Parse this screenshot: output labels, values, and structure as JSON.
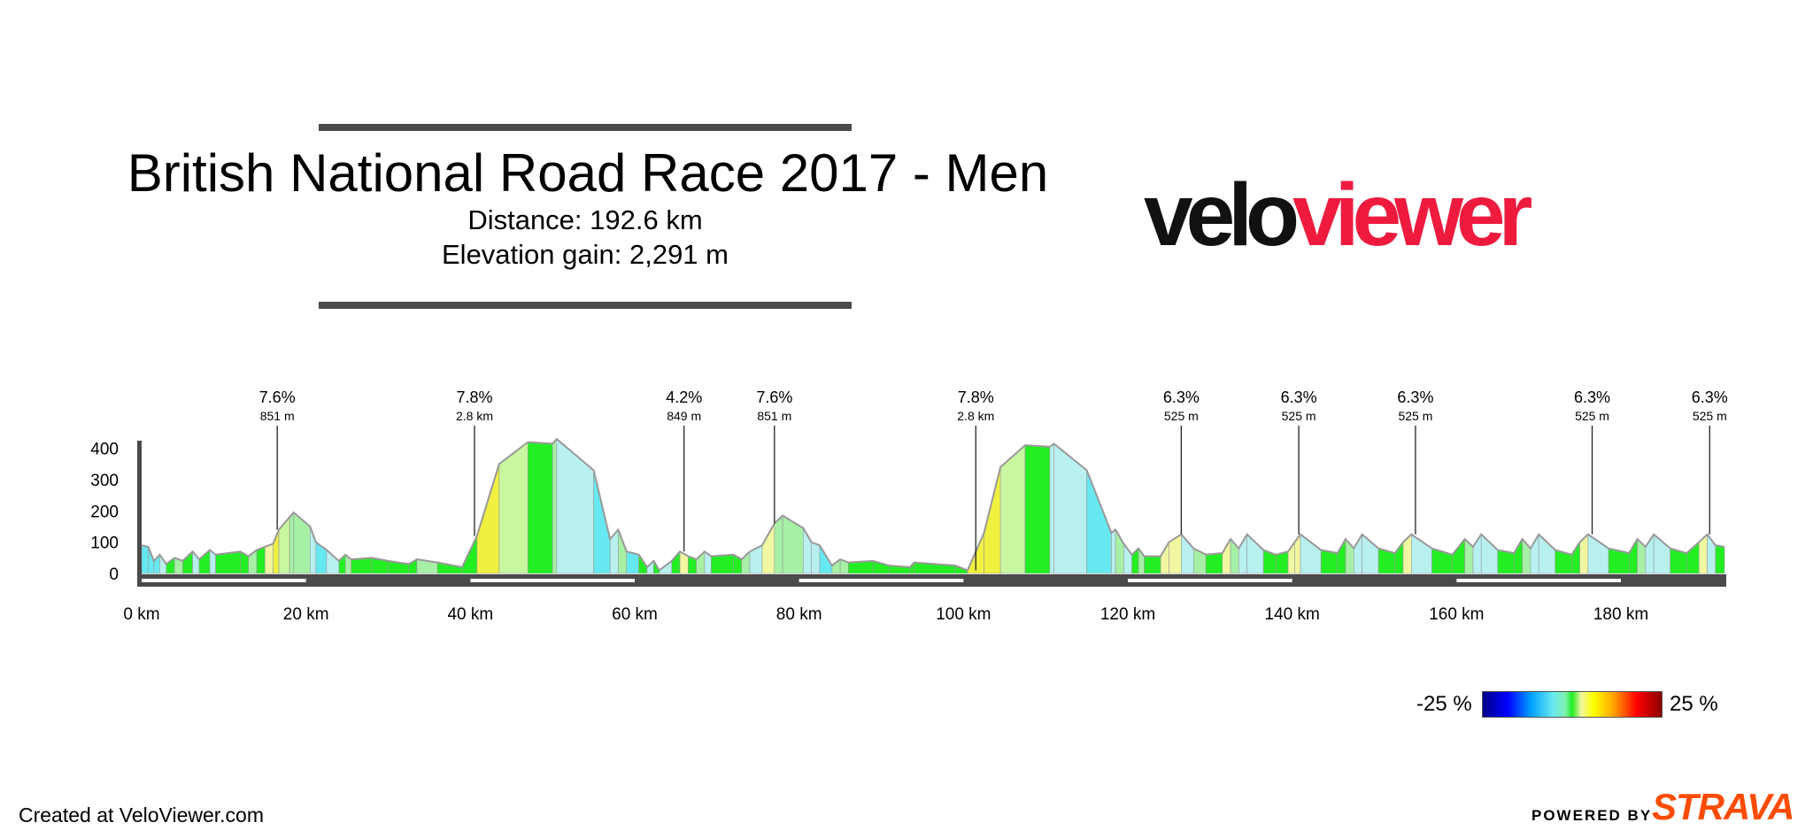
{
  "header": {
    "title": "British National Road Race 2017 - Men",
    "distance": "Distance: 192.6 km",
    "elevation_gain": "Elevation gain: 2,291 m"
  },
  "logo": {
    "part1": "velo",
    "part2": "viewer",
    "color_dark": "#111111",
    "color_accent": "#ee1b3f"
  },
  "legend": {
    "min_label": "-25 %",
    "max_label": "25 %"
  },
  "footer": {
    "credit": "Created at VeloViewer.com",
    "powered_by": "POWERED BY",
    "strava": "STRAVA",
    "strava_color": "#fc4c02"
  },
  "chart_data": {
    "type": "area",
    "title": "",
    "xlabel": "",
    "ylabel": "",
    "xlim": [
      0,
      192.6
    ],
    "ylim": [
      0,
      450
    ],
    "x_ticks": [
      0,
      20,
      40,
      60,
      80,
      100,
      120,
      140,
      160,
      180
    ],
    "x_tick_labels": [
      "0 km",
      "20 km",
      "40 km",
      "60 km",
      "80 km",
      "100 km",
      "120 km",
      "140 km",
      "160 km",
      "180 km"
    ],
    "y_ticks": [
      0,
      100,
      200,
      300,
      400
    ],
    "y_tick_labels": [
      "0",
      "100",
      "200",
      "300",
      "400"
    ],
    "colors": {
      "green": "#22ee22",
      "pale_green": "#a6f0a6",
      "light_green": "#c8f7a0",
      "pale_yellow": "#f0f7a0",
      "yellow": "#f0f040",
      "pale_cyan": "#b8f0f0",
      "cyan": "#66e8f0",
      "profile_line": "#999999"
    },
    "profile": [
      {
        "x": 0,
        "y": 90,
        "c": "cyan"
      },
      {
        "x": 0.8,
        "y": 85,
        "c": "cyan"
      },
      {
        "x": 1.5,
        "y": 40,
        "c": "cyan"
      },
      {
        "x": 2.2,
        "y": 60,
        "c": "pale_cyan"
      },
      {
        "x": 3,
        "y": 30,
        "c": "green"
      },
      {
        "x": 4,
        "y": 50,
        "c": "pale_green"
      },
      {
        "x": 5,
        "y": 40,
        "c": "green"
      },
      {
        "x": 6.2,
        "y": 70,
        "c": "pale_cyan"
      },
      {
        "x": 7,
        "y": 45,
        "c": "green"
      },
      {
        "x": 8.3,
        "y": 75,
        "c": "pale_cyan"
      },
      {
        "x": 9,
        "y": 60,
        "c": "green"
      },
      {
        "x": 12,
        "y": 70,
        "c": "green"
      },
      {
        "x": 13,
        "y": 55,
        "c": "pale_green"
      },
      {
        "x": 14,
        "y": 75,
        "c": "green"
      },
      {
        "x": 15,
        "y": 85,
        "c": "pale_yellow"
      },
      {
        "x": 16,
        "y": 95,
        "c": "yellow"
      },
      {
        "x": 16.7,
        "y": 140,
        "c": "light_green"
      },
      {
        "x": 18,
        "y": 180,
        "c": "pale_green"
      },
      {
        "x": 18.5,
        "y": 195,
        "c": "pale_green"
      },
      {
        "x": 20.5,
        "y": 150,
        "c": "pale_cyan"
      },
      {
        "x": 21.2,
        "y": 100,
        "c": "cyan"
      },
      {
        "x": 22.5,
        "y": 75,
        "c": "pale_cyan"
      },
      {
        "x": 24,
        "y": 40,
        "c": "green"
      },
      {
        "x": 24.8,
        "y": 60,
        "c": "pale_green"
      },
      {
        "x": 25.5,
        "y": 45,
        "c": "green"
      },
      {
        "x": 28,
        "y": 50,
        "c": "green"
      },
      {
        "x": 30,
        "y": 40,
        "c": "green"
      },
      {
        "x": 32.5,
        "y": 30,
        "c": "green"
      },
      {
        "x": 33.5,
        "y": 45,
        "c": "pale_green"
      },
      {
        "x": 36,
        "y": 35,
        "c": "green"
      },
      {
        "x": 39,
        "y": 20,
        "c": "green"
      },
      {
        "x": 40.8,
        "y": 120,
        "c": "yellow"
      },
      {
        "x": 43.5,
        "y": 350,
        "c": "light_green"
      },
      {
        "x": 47,
        "y": 420,
        "c": "green"
      },
      {
        "x": 50,
        "y": 415,
        "c": "pale_green"
      },
      {
        "x": 50.5,
        "y": 430,
        "c": "pale_cyan"
      },
      {
        "x": 55,
        "y": 330,
        "c": "cyan"
      },
      {
        "x": 57,
        "y": 110,
        "c": "pale_cyan"
      },
      {
        "x": 58,
        "y": 140,
        "c": "pale_green"
      },
      {
        "x": 59,
        "y": 70,
        "c": "cyan"
      },
      {
        "x": 60.5,
        "y": 60,
        "c": "green"
      },
      {
        "x": 61.5,
        "y": 20,
        "c": "pale_cyan"
      },
      {
        "x": 62.3,
        "y": 40,
        "c": "green"
      },
      {
        "x": 63,
        "y": 10,
        "c": "pale_cyan"
      },
      {
        "x": 64.5,
        "y": 40,
        "c": "green"
      },
      {
        "x": 65.5,
        "y": 70,
        "c": "pale_yellow"
      },
      {
        "x": 66.5,
        "y": 55,
        "c": "green"
      },
      {
        "x": 67.5,
        "y": 45,
        "c": "pale_green"
      },
      {
        "x": 68.5,
        "y": 70,
        "c": "pale_cyan"
      },
      {
        "x": 69.3,
        "y": 55,
        "c": "green"
      },
      {
        "x": 72,
        "y": 60,
        "c": "green"
      },
      {
        "x": 73,
        "y": 45,
        "c": "pale_green"
      },
      {
        "x": 74,
        "y": 70,
        "c": "pale_cyan"
      },
      {
        "x": 75.5,
        "y": 90,
        "c": "pale_yellow"
      },
      {
        "x": 77,
        "y": 160,
        "c": "pale_green"
      },
      {
        "x": 78,
        "y": 185,
        "c": "pale_green"
      },
      {
        "x": 80.5,
        "y": 145,
        "c": "pale_cyan"
      },
      {
        "x": 81.5,
        "y": 100,
        "c": "pale_cyan"
      },
      {
        "x": 82.5,
        "y": 90,
        "c": "cyan"
      },
      {
        "x": 84,
        "y": 25,
        "c": "pale_green"
      },
      {
        "x": 85,
        "y": 45,
        "c": "pale_green"
      },
      {
        "x": 86,
        "y": 35,
        "c": "green"
      },
      {
        "x": 89,
        "y": 40,
        "c": "green"
      },
      {
        "x": 91,
        "y": 25,
        "c": "green"
      },
      {
        "x": 93.5,
        "y": 20,
        "c": "green"
      },
      {
        "x": 94,
        "y": 35,
        "c": "green"
      },
      {
        "x": 99,
        "y": 25,
        "c": "green"
      },
      {
        "x": 100.5,
        "y": 10,
        "c": "yellow"
      },
      {
        "x": 102.5,
        "y": 130,
        "c": "yellow"
      },
      {
        "x": 104.5,
        "y": 340,
        "c": "light_green"
      },
      {
        "x": 107.5,
        "y": 410,
        "c": "green"
      },
      {
        "x": 110.5,
        "y": 405,
        "c": "pale_cyan"
      },
      {
        "x": 111,
        "y": 415,
        "c": "pale_cyan"
      },
      {
        "x": 115,
        "y": 330,
        "c": "cyan"
      },
      {
        "x": 118,
        "y": 130,
        "c": "pale_cyan"
      },
      {
        "x": 118.5,
        "y": 140,
        "c": "pale_green"
      },
      {
        "x": 119.5,
        "y": 95,
        "c": "pale_cyan"
      },
      {
        "x": 120.5,
        "y": 60,
        "c": "green"
      },
      {
        "x": 121.3,
        "y": 80,
        "c": "pale_green"
      },
      {
        "x": 122,
        "y": 55,
        "c": "green"
      },
      {
        "x": 124,
        "y": 55,
        "c": "pale_yellow"
      },
      {
        "x": 125,
        "y": 100,
        "c": "pale_yellow"
      },
      {
        "x": 126.5,
        "y": 125,
        "c": "pale_cyan"
      },
      {
        "x": 128,
        "y": 80,
        "c": "pale_green"
      },
      {
        "x": 129.5,
        "y": 60,
        "c": "green"
      },
      {
        "x": 131.5,
        "y": 65,
        "c": "pale_yellow"
      },
      {
        "x": 132.5,
        "y": 110,
        "c": "pale_green"
      },
      {
        "x": 133.5,
        "y": 80,
        "c": "pale_cyan"
      },
      {
        "x": 134.5,
        "y": 125,
        "c": "pale_cyan"
      },
      {
        "x": 136.5,
        "y": 75,
        "c": "green"
      },
      {
        "x": 138,
        "y": 60,
        "c": "green"
      },
      {
        "x": 139.5,
        "y": 70,
        "c": "pale_yellow"
      },
      {
        "x": 140.3,
        "y": 100,
        "c": "pale_yellow"
      },
      {
        "x": 141,
        "y": 125,
        "c": "pale_cyan"
      },
      {
        "x": 143.5,
        "y": 75,
        "c": "green"
      },
      {
        "x": 145.5,
        "y": 65,
        "c": "green"
      },
      {
        "x": 146.5,
        "y": 110,
        "c": "pale_green"
      },
      {
        "x": 147.5,
        "y": 80,
        "c": "pale_cyan"
      },
      {
        "x": 148.5,
        "y": 125,
        "c": "pale_cyan"
      },
      {
        "x": 150.5,
        "y": 80,
        "c": "green"
      },
      {
        "x": 152.5,
        "y": 65,
        "c": "green"
      },
      {
        "x": 153.5,
        "y": 100,
        "c": "pale_yellow"
      },
      {
        "x": 154.5,
        "y": 125,
        "c": "pale_cyan"
      },
      {
        "x": 157,
        "y": 80,
        "c": "green"
      },
      {
        "x": 159.5,
        "y": 60,
        "c": "green"
      },
      {
        "x": 161,
        "y": 110,
        "c": "pale_green"
      },
      {
        "x": 162,
        "y": 85,
        "c": "pale_cyan"
      },
      {
        "x": 163,
        "y": 125,
        "c": "pale_cyan"
      },
      {
        "x": 165,
        "y": 75,
        "c": "green"
      },
      {
        "x": 167,
        "y": 65,
        "c": "green"
      },
      {
        "x": 168,
        "y": 110,
        "c": "pale_green"
      },
      {
        "x": 169,
        "y": 80,
        "c": "pale_cyan"
      },
      {
        "x": 170,
        "y": 125,
        "c": "pale_cyan"
      },
      {
        "x": 172,
        "y": 75,
        "c": "green"
      },
      {
        "x": 174,
        "y": 60,
        "c": "green"
      },
      {
        "x": 175,
        "y": 100,
        "c": "pale_yellow"
      },
      {
        "x": 176,
        "y": 125,
        "c": "pale_cyan"
      },
      {
        "x": 178.5,
        "y": 80,
        "c": "green"
      },
      {
        "x": 181,
        "y": 65,
        "c": "green"
      },
      {
        "x": 182,
        "y": 110,
        "c": "pale_green"
      },
      {
        "x": 183,
        "y": 85,
        "c": "pale_cyan"
      },
      {
        "x": 184,
        "y": 125,
        "c": "pale_cyan"
      },
      {
        "x": 186,
        "y": 80,
        "c": "green"
      },
      {
        "x": 188,
        "y": 65,
        "c": "green"
      },
      {
        "x": 189.5,
        "y": 100,
        "c": "pale_yellow"
      },
      {
        "x": 190.5,
        "y": 125,
        "c": "pale_cyan"
      },
      {
        "x": 191.5,
        "y": 90,
        "c": "green"
      },
      {
        "x": 192.6,
        "y": 85
      }
    ],
    "annotations": [
      {
        "x": 16.5,
        "grade": "7.6%",
        "length": "851 m"
      },
      {
        "x": 40.5,
        "grade": "7.8%",
        "length": "2.8 km"
      },
      {
        "x": 66,
        "grade": "4.2%",
        "length": "849 m"
      },
      {
        "x": 77,
        "grade": "7.6%",
        "length": "851 m"
      },
      {
        "x": 101.5,
        "grade": "7.8%",
        "length": "2.8 km"
      },
      {
        "x": 126.5,
        "grade": "6.3%",
        "length": "525 m"
      },
      {
        "x": 140.8,
        "grade": "6.3%",
        "length": "525 m"
      },
      {
        "x": 155,
        "grade": "6.3%",
        "length": "525 m"
      },
      {
        "x": 176.5,
        "grade": "6.3%",
        "length": "525 m"
      },
      {
        "x": 190.8,
        "grade": "6.3%",
        "length": "525 m"
      }
    ]
  }
}
